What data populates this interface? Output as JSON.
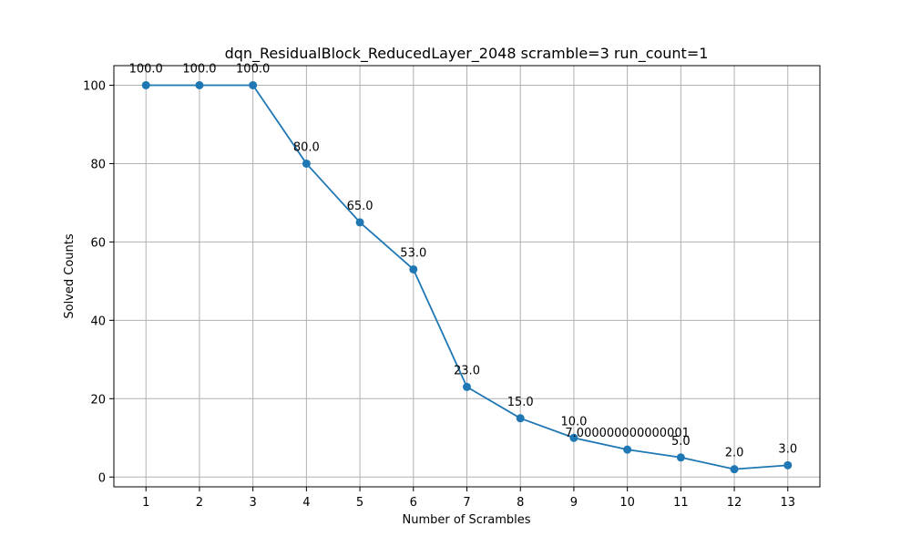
{
  "chart_data": {
    "type": "line",
    "title": "dqn_ResidualBlock_ReducedLayer_2048 scramble=3 run_count=1",
    "xlabel": "Number of Scrambles",
    "ylabel": "Solved Counts",
    "x": [
      1,
      2,
      3,
      4,
      5,
      6,
      7,
      8,
      9,
      10,
      11,
      12,
      13
    ],
    "series": [
      {
        "values": [
          100.0,
          100.0,
          100.0,
          80.0,
          65.0,
          53.0,
          23.0,
          15.0,
          10.0,
          7.000000000000001,
          5.0,
          2.0,
          3.0
        ],
        "labels": [
          "100.0",
          "100.0",
          "100.0",
          "80.0",
          "65.0",
          "53.0",
          "23.0",
          "15.0",
          "10.0",
          "7.000000000000001",
          "5.0",
          "2.0",
          "3.0"
        ],
        "color": "#1f77b4",
        "marker": "circle"
      }
    ],
    "xticks": [
      "1",
      "2",
      "3",
      "4",
      "5",
      "6",
      "7",
      "8",
      "9",
      "10",
      "11",
      "12",
      "13"
    ],
    "yticks": [
      "0",
      "20",
      "40",
      "60",
      "80",
      "100"
    ],
    "ytick_values": [
      0,
      20,
      40,
      60,
      80,
      100
    ],
    "xlim": [
      0.4,
      13.6
    ],
    "ylim": [
      -2.5,
      105
    ],
    "grid": true,
    "legend": "none"
  }
}
